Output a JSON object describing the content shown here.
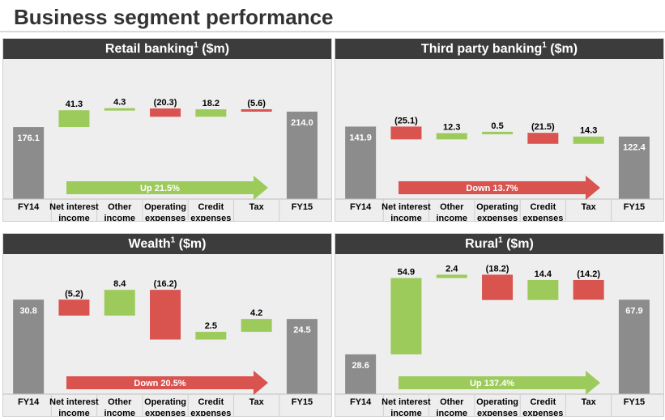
{
  "page": {
    "title": "Business segment performance"
  },
  "colors": {
    "total": "#8c8c8c",
    "increase": "#9ccb5c",
    "decrease": "#d9534f",
    "header": "#3c3c3c",
    "panel_bg": "#eeeeee"
  },
  "chart_data": [
    {
      "type": "waterfall",
      "title": "Retail banking",
      "title_sup": "1",
      "title_unit": "($m)",
      "categories": [
        [
          "FY14"
        ],
        [
          "Net interest",
          "income"
        ],
        [
          "Other",
          "income"
        ],
        [
          "Operating",
          "expenses"
        ],
        [
          "Credit",
          "expenses"
        ],
        [
          "Tax"
        ],
        [
          "FY15"
        ]
      ],
      "kinds": [
        "total",
        "delta",
        "delta",
        "delta",
        "delta",
        "delta",
        "total"
      ],
      "values": [
        176.1,
        41.3,
        4.3,
        -20.3,
        18.2,
        -5.6,
        214.0
      ],
      "labels": [
        "176.1",
        "41.3",
        "4.3",
        "(20.3)",
        "18.2",
        "(5.6)",
        "214.0"
      ],
      "arrow": {
        "text": "Up 21.5%",
        "direction": "up"
      }
    },
    {
      "type": "waterfall",
      "title": "Third party banking",
      "title_sup": "1",
      "title_unit": "($m)",
      "categories": [
        [
          "FY14"
        ],
        [
          "Net interest",
          "income"
        ],
        [
          "Other",
          "income"
        ],
        [
          "Operating",
          "expenses"
        ],
        [
          "Credit",
          "expenses"
        ],
        [
          "Tax"
        ],
        [
          "FY15"
        ]
      ],
      "kinds": [
        "total",
        "delta",
        "delta",
        "delta",
        "delta",
        "delta",
        "total"
      ],
      "values": [
        141.9,
        -25.1,
        12.3,
        0.5,
        -21.5,
        14.3,
        122.4
      ],
      "labels": [
        "141.9",
        "(25.1)",
        "12.3",
        "0.5",
        "(21.5)",
        "14.3",
        "122.4"
      ],
      "arrow": {
        "text": "Down 13.7%",
        "direction": "down"
      }
    },
    {
      "type": "waterfall",
      "title": "Wealth",
      "title_sup": "1",
      "title_unit": "($m)",
      "categories": [
        [
          "FY14"
        ],
        [
          "Net interest",
          "income"
        ],
        [
          "Other",
          "income"
        ],
        [
          "Operating",
          "expenses"
        ],
        [
          "Credit",
          "expenses"
        ],
        [
          "Tax"
        ],
        [
          "FY15"
        ]
      ],
      "kinds": [
        "total",
        "delta",
        "delta",
        "delta",
        "delta",
        "delta",
        "total"
      ],
      "values": [
        30.8,
        -5.2,
        8.4,
        -16.2,
        2.5,
        4.2,
        24.5
      ],
      "labels": [
        "30.8",
        "(5.2)",
        "8.4",
        "(16.2)",
        "2.5",
        "4.2",
        "24.5"
      ],
      "arrow": {
        "text": "Down 20.5%",
        "direction": "down"
      }
    },
    {
      "type": "waterfall",
      "title": "Rural",
      "title_sup": "1",
      "title_unit": "($m)",
      "categories": [
        [
          "FY14"
        ],
        [
          "Net interest",
          "income"
        ],
        [
          "Other",
          "income"
        ],
        [
          "Operating",
          "expenses"
        ],
        [
          "Credit",
          "expenses"
        ],
        [
          "Tax"
        ],
        [
          "FY15"
        ]
      ],
      "kinds": [
        "total",
        "delta",
        "delta",
        "delta",
        "delta",
        "delta",
        "total"
      ],
      "values": [
        28.6,
        54.9,
        2.4,
        -18.2,
        14.4,
        -14.2,
        67.9
      ],
      "labels": [
        "28.6",
        "54.9",
        "2.4",
        "(18.2)",
        "14.4",
        "(14.2)",
        "67.9"
      ],
      "arrow": {
        "text": "Up 137.4%",
        "direction": "up"
      }
    }
  ]
}
